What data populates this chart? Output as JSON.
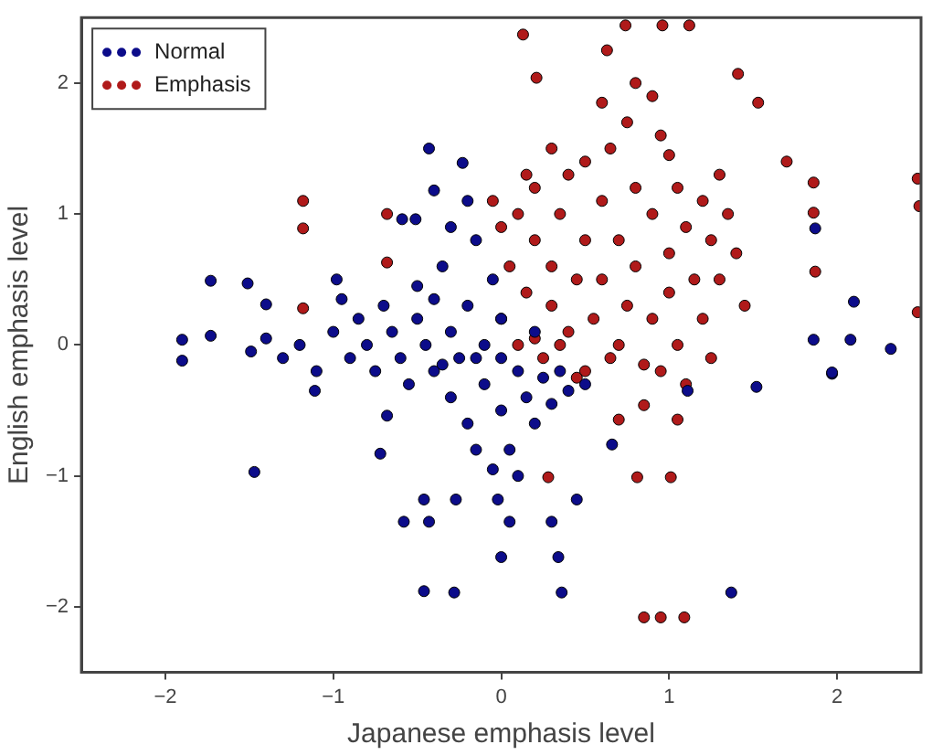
{
  "chart_data": {
    "type": "scatter",
    "xlabel": "Japanese emphasis level",
    "ylabel": "English emphasis level",
    "xlim": [
      -2.5,
      2.5
    ],
    "ylim": [
      -2.5,
      2.5
    ],
    "xticks": [
      -2,
      -1,
      0,
      1,
      2
    ],
    "yticks": [
      -2,
      -1,
      0,
      1,
      2
    ],
    "grid": false,
    "legend": "top left",
    "marker": "circle",
    "series": [
      {
        "name": "Normal",
        "color": "#0c0c8a",
        "x": [
          -0.43,
          -0.23,
          -0.4,
          -0.59,
          -0.51,
          -1.73,
          -1.51,
          -1.4,
          -1.9,
          -1.9,
          -1.73,
          -1.49,
          -0.98,
          -1.47,
          -0.72,
          -0.58,
          -0.46,
          -0.28,
          -0.43,
          -0.46,
          -0.27,
          -1.11,
          -0.68,
          0.36,
          1.37,
          0.34,
          0,
          0.3,
          0.05,
          0.45,
          -0.02,
          0.66,
          1.11,
          1.52,
          1.97,
          2.1,
          2.32,
          2.08,
          1.86,
          1.87,
          1.97,
          -1.0,
          -0.9,
          -0.85,
          -0.8,
          -0.75,
          -0.7,
          -0.65,
          -0.6,
          -0.55,
          -0.5,
          -0.5,
          -0.45,
          -0.4,
          -0.4,
          -0.35,
          -0.3,
          -0.3,
          -0.25,
          -0.2,
          -0.2,
          -0.15,
          -0.1,
          -0.1,
          -0.05,
          0.0,
          0.0,
          0.05,
          0.1,
          0.15,
          0.2,
          0.25,
          0.3,
          0.35,
          0.4,
          0.5,
          -0.05,
          0.1,
          -0.15,
          -0.3,
          -0.2,
          -1.2,
          -1.3,
          -1.1,
          -1.4,
          -0.95,
          -0.15,
          0.0,
          -0.35,
          0.2
        ],
        "values": [
          1.5,
          1.39,
          1.18,
          0.96,
          0.96,
          0.49,
          0.47,
          0.31,
          0.04,
          -0.12,
          0.07,
          -0.05,
          0.5,
          -0.97,
          -0.83,
          -1.35,
          -1.88,
          -1.89,
          -1.35,
          -1.18,
          -1.18,
          -0.35,
          -0.54,
          -1.89,
          -1.89,
          -1.62,
          -1.62,
          -1.35,
          -1.35,
          -1.18,
          -1.18,
          -0.76,
          -0.35,
          -0.32,
          -0.22,
          0.33,
          -0.03,
          0.04,
          0.04,
          0.89,
          -0.21,
          0.1,
          -0.1,
          0.2,
          0.0,
          -0.2,
          0.3,
          0.1,
          -0.1,
          -0.3,
          0.2,
          0.45,
          0.0,
          -0.2,
          0.35,
          0.6,
          0.1,
          -0.4,
          -0.1,
          0.3,
          -0.6,
          0.8,
          0.0,
          -0.3,
          0.5,
          -0.5,
          0.2,
          -0.8,
          -0.2,
          -0.4,
          -0.6,
          -0.25,
          -0.45,
          -0.2,
          -0.35,
          -0.3,
          -0.95,
          -1.0,
          -0.8,
          0.9,
          1.1,
          0.0,
          -0.1,
          -0.2,
          0.05,
          0.35,
          -0.1,
          -0.1,
          -0.15,
          0.1
        ]
      },
      {
        "name": "Emphasis",
        "color": "#b01a1a",
        "x": [
          -1.18,
          -1.18,
          -1.18,
          -0.68,
          -0.68,
          0.13,
          0.74,
          0.96,
          1.12,
          1.41,
          0.21,
          1.86,
          1.86,
          1.87,
          2.48,
          2.49,
          2.48,
          1.7,
          1.53,
          0.63,
          0.85,
          0.95,
          1.09,
          1.01,
          0.81,
          0.28,
          1.05,
          0.7,
          0.85,
          0.0,
          0.05,
          0.1,
          0.1,
          0.15,
          0.2,
          0.2,
          0.25,
          0.3,
          0.3,
          0.35,
          0.4,
          0.4,
          0.45,
          0.5,
          0.5,
          0.55,
          0.6,
          0.6,
          0.65,
          0.7,
          0.7,
          0.75,
          0.8,
          0.8,
          0.85,
          0.9,
          0.9,
          0.95,
          1.0,
          1.0,
          1.05,
          1.05,
          1.1,
          1.15,
          1.2,
          1.2,
          1.25,
          1.3,
          1.35,
          1.4,
          0.3,
          0.5,
          0.75,
          1.0,
          0.6,
          0.9,
          0.8,
          0.0,
          -0.05,
          0.2,
          0.45,
          0.95,
          1.1,
          0.65,
          0.35,
          0.15,
          1.3,
          1.45,
          1.25
        ],
        "values": [
          1.1,
          0.89,
          0.28,
          1.0,
          0.63,
          2.37,
          2.44,
          2.44,
          2.44,
          2.07,
          2.04,
          1.24,
          1.01,
          0.56,
          1.27,
          1.06,
          0.25,
          1.4,
          1.85,
          2.25,
          -2.08,
          -2.08,
          -2.08,
          -1.01,
          -1.01,
          -1.01,
          -0.57,
          -0.57,
          -0.46,
          0.2,
          0.6,
          1.0,
          0.0,
          0.4,
          0.8,
          1.2,
          -0.1,
          0.3,
          0.6,
          1.0,
          0.1,
          1.3,
          0.5,
          0.8,
          -0.2,
          0.2,
          1.1,
          0.5,
          1.5,
          0.0,
          0.8,
          0.3,
          1.2,
          0.6,
          -0.15,
          1.0,
          0.2,
          1.6,
          0.7,
          0.4,
          1.2,
          0.0,
          0.9,
          0.5,
          1.1,
          0.2,
          0.8,
          0.5,
          1.0,
          0.7,
          1.5,
          1.4,
          1.7,
          1.45,
          1.85,
          1.9,
          2.0,
          0.9,
          1.1,
          0.05,
          -0.25,
          -0.2,
          -0.3,
          -0.1,
          0.0,
          1.3,
          1.3,
          0.3,
          -0.1
        ]
      }
    ]
  }
}
